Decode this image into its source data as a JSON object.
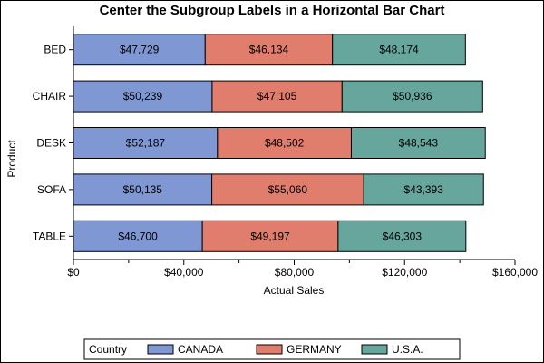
{
  "chart_data": {
    "type": "bar",
    "orientation": "horizontal",
    "stacked": true,
    "title": "Center the Subgroup Labels in a Horizontal Bar Chart",
    "xlabel": "Actual Sales",
    "ylabel": "Product",
    "categories": [
      "BED",
      "CHAIR",
      "DESK",
      "SOFA",
      "TABLE"
    ],
    "xlim": [
      0,
      160000
    ],
    "xticks": [
      0,
      40000,
      80000,
      120000,
      160000
    ],
    "xtick_labels": [
      "$0",
      "$40,000",
      "$80,000",
      "$120,000",
      "$160,000"
    ],
    "grid": false,
    "legend_title": "Country",
    "legend_position": "bottom",
    "series": [
      {
        "name": "CANADA",
        "color": "#7f97d3",
        "values": [
          47729,
          50239,
          52187,
          50135,
          46700
        ],
        "labels": [
          "$47,729",
          "$50,239",
          "$52,187",
          "$50,135",
          "$46,700"
        ]
      },
      {
        "name": "GERMANY",
        "color": "#e07d6c",
        "values": [
          46134,
          47105,
          48502,
          55060,
          49197
        ],
        "labels": [
          "$46,134",
          "$47,105",
          "$48,502",
          "$55,060",
          "$49,197"
        ]
      },
      {
        "name": "U.S.A.",
        "color": "#66a69d",
        "values": [
          48174,
          50936,
          48543,
          43393,
          46303
        ],
        "labels": [
          "$48,174",
          "$50,936",
          "$48,543",
          "$43,393",
          "$46,303"
        ]
      }
    ]
  }
}
